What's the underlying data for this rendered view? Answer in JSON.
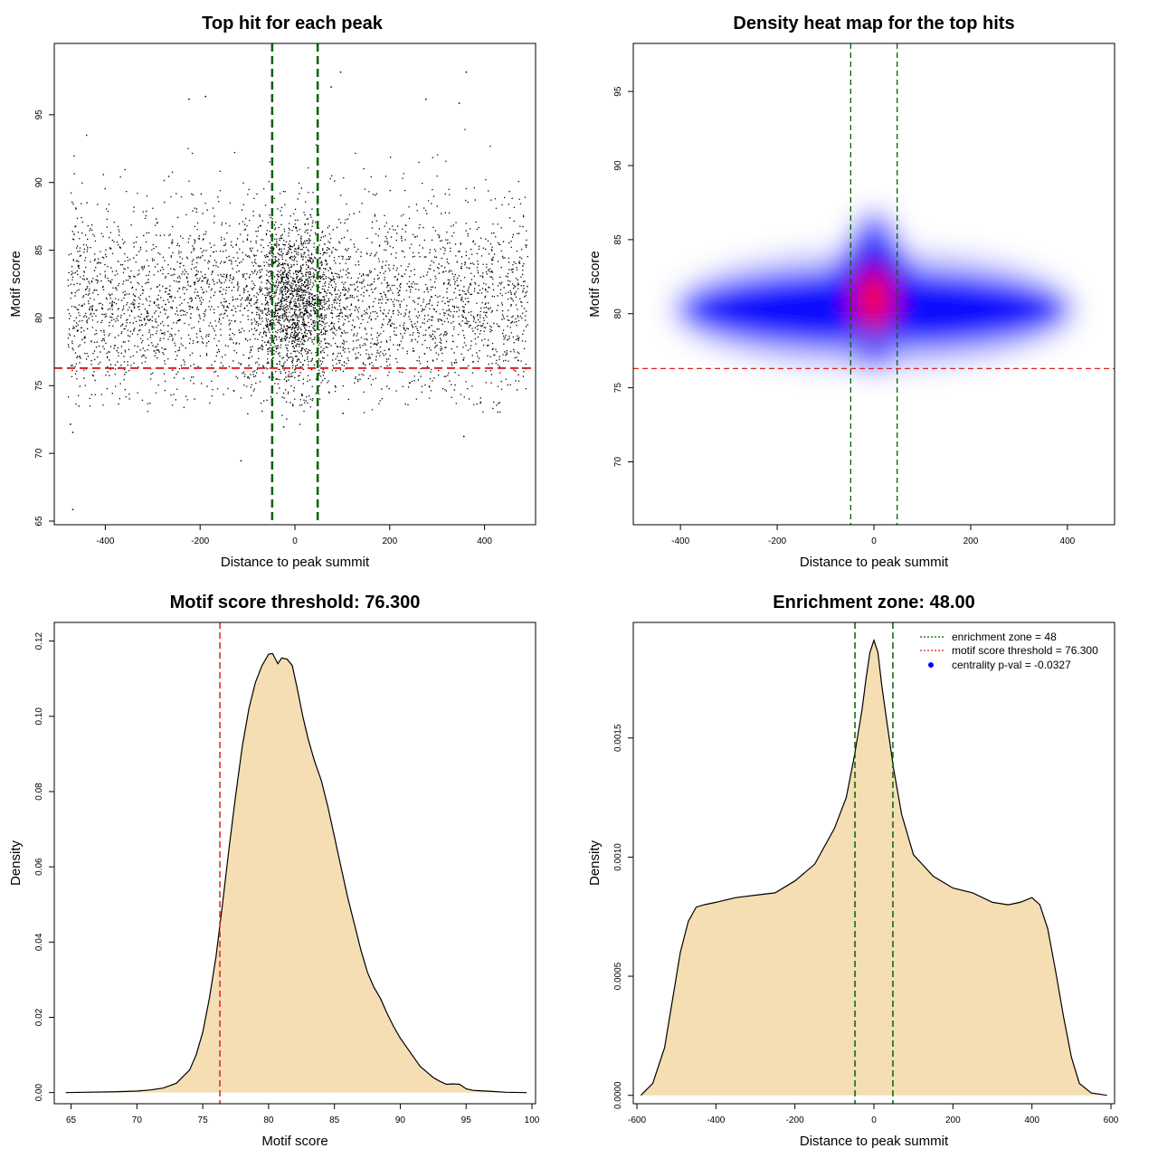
{
  "chart_data": [
    {
      "type": "scatter",
      "title": "Top hit for each peak",
      "xlabel": "Distance to peak summit",
      "ylabel": "Motif score",
      "xlim": [
        -500,
        500
      ],
      "ylim": [
        65,
        100
      ],
      "xticks": [
        "-400",
        "-200",
        "0",
        "200",
        "400"
      ],
      "yticks": [
        "65",
        "70",
        "75",
        "80",
        "85",
        "90",
        "95"
      ],
      "point_color": "#000000",
      "distribution": {
        "x_range": [
          -480,
          490
        ],
        "y_center": 80.5,
        "y_spread": 3.2,
        "central_cluster_center": [
          0,
          81
        ],
        "approx_points": 11000
      },
      "outlier_points": [
        {
          "x": 95,
          "y": 98.2
        },
        {
          "x": 360,
          "y": 98.2
        },
        {
          "x": 75,
          "y": 97.1
        },
        {
          "x": 275,
          "y": 96.2
        },
        {
          "x": 345,
          "y": 95.9
        },
        {
          "x": -190,
          "y": 96.4
        },
        {
          "x": -225,
          "y": 96.2
        },
        {
          "x": -475,
          "y": 72.2
        },
        {
          "x": -470,
          "y": 65.9
        },
        {
          "x": -115,
          "y": 69.5
        },
        {
          "x": -470,
          "y": 71.6
        },
        {
          "x": 355,
          "y": 71.3
        },
        {
          "x": -25,
          "y": 72.0
        },
        {
          "x": 100,
          "y": 73.0
        }
      ],
      "vlines": [
        -48,
        48
      ],
      "vline_color": "#006400",
      "hline": 76.3,
      "hline_color": "#dd2222"
    },
    {
      "type": "heatmap",
      "title": "Density heat map for the top hits",
      "xlabel": "Distance to peak summit",
      "ylabel": "Motif score",
      "xlim": [
        -490,
        490
      ],
      "ylim": [
        66,
        98
      ],
      "xticks": [
        "-400",
        "-200",
        "0",
        "200",
        "400"
      ],
      "yticks": [
        "70",
        "75",
        "80",
        "85",
        "90",
        "95"
      ],
      "colorscale": [
        "#ffffff",
        "#0000ff",
        "#ff0000"
      ],
      "blobs": [
        {
          "x": 0,
          "y": 81,
          "sx": 45,
          "sy": 1.6,
          "level": 1.0
        },
        {
          "x": 0,
          "y": 81.5,
          "sx": 70,
          "sy": 3.4,
          "level": 0.55
        },
        {
          "x": 0,
          "y": 80.3,
          "sx": 420,
          "sy": 2.6,
          "level": 0.5
        }
      ],
      "vlines": [
        -48,
        48
      ],
      "vline_color": "#006400",
      "hline": 76.3,
      "hline_color": "#dd2222"
    },
    {
      "type": "area",
      "title": "Motif score threshold: 76.300",
      "xlabel": "Motif score",
      "ylabel": "Density",
      "xlim": [
        64,
        100
      ],
      "ylim": [
        -0.002,
        0.124
      ],
      "xticks": [
        "65",
        "70",
        "75",
        "80",
        "85",
        "90",
        "95",
        "100"
      ],
      "yticks": [
        "0.00",
        "0.02",
        "0.04",
        "0.06",
        "0.08",
        "0.10",
        "0.12"
      ],
      "fill_color": "#f5deb3",
      "x": [
        64.6,
        66,
        68,
        70,
        71,
        72,
        73,
        74,
        74.5,
        75,
        75.5,
        76,
        76.5,
        77,
        77.5,
        78,
        78.5,
        79,
        79.5,
        80,
        80.3,
        80.7,
        81,
        81.4,
        81.8,
        82.2,
        82.6,
        83,
        83.5,
        84,
        84.5,
        85,
        85.5,
        86,
        86.5,
        87,
        87.5,
        88,
        88.5,
        89,
        89.5,
        90,
        90.5,
        91,
        91.5,
        92,
        92.5,
        93,
        93.5,
        94,
        94.5,
        95,
        95.5,
        96,
        97,
        98,
        99.6
      ],
      "values": [
        0,
        0.0001,
        0.0002,
        0.0004,
        0.0007,
        0.0012,
        0.0025,
        0.006,
        0.01,
        0.016,
        0.025,
        0.036,
        0.05,
        0.065,
        0.079,
        0.092,
        0.102,
        0.109,
        0.1135,
        0.1165,
        0.1167,
        0.114,
        0.1155,
        0.1152,
        0.1135,
        0.107,
        0.1,
        0.094,
        0.088,
        0.083,
        0.076,
        0.068,
        0.06,
        0.052,
        0.045,
        0.038,
        0.032,
        0.028,
        0.025,
        0.021,
        0.0175,
        0.0145,
        0.012,
        0.0095,
        0.007,
        0.0055,
        0.004,
        0.003,
        0.0022,
        0.0023,
        0.0022,
        0.001,
        0.0006,
        0.0005,
        0.0003,
        0.0001,
        0
      ],
      "vline": 76.3,
      "vline_color": "#dd2222"
    },
    {
      "type": "area",
      "title": "Enrichment zone: 48.00",
      "xlabel": "Distance to peak summit",
      "ylabel": "Density",
      "xlim": [
        -600,
        600
      ],
      "ylim": [
        -2e-05,
        0.00197
      ],
      "xticks": [
        "-600",
        "-400",
        "-200",
        "0",
        "200",
        "400",
        "600"
      ],
      "yticks": [
        "0.0000",
        "0.0005",
        "0.0010",
        "0.0015"
      ],
      "fill_color": "#f5deb3",
      "x": [
        -590,
        -560,
        -530,
        -510,
        -490,
        -470,
        -450,
        -430,
        -400,
        -350,
        -300,
        -250,
        -200,
        -150,
        -100,
        -70,
        -50,
        -30,
        -20,
        -10,
        0,
        10,
        20,
        30,
        50,
        70,
        100,
        150,
        200,
        250,
        300,
        340,
        370,
        400,
        420,
        440,
        460,
        480,
        500,
        520,
        550,
        590
      ],
      "values": [
        0,
        5e-05,
        0.0002,
        0.0004,
        0.0006,
        0.00073,
        0.00079,
        0.0008,
        0.00081,
        0.00083,
        0.00084,
        0.00085,
        0.0009,
        0.00097,
        0.00112,
        0.00125,
        0.00142,
        0.00162,
        0.00175,
        0.00186,
        0.00191,
        0.00186,
        0.00172,
        0.0016,
        0.00137,
        0.00118,
        0.00101,
        0.00092,
        0.00087,
        0.00085,
        0.00081,
        0.0008,
        0.00081,
        0.00083,
        0.0008,
        0.0007,
        0.00052,
        0.00033,
        0.00016,
        5e-05,
        1e-05,
        0
      ],
      "vlines": [
        -48,
        48
      ],
      "vline_color": "#006400",
      "legend": [
        {
          "label": "enrichment zone = 48",
          "color": "#006400",
          "style": "dotted"
        },
        {
          "label": "motif score threshold = 76.300",
          "color": "#dd2222",
          "style": "dotted"
        },
        {
          "label": "centrality p-val = -0.0327",
          "color": "#0000ff",
          "style": "point"
        }
      ],
      "legend_position": "top-right"
    }
  ]
}
